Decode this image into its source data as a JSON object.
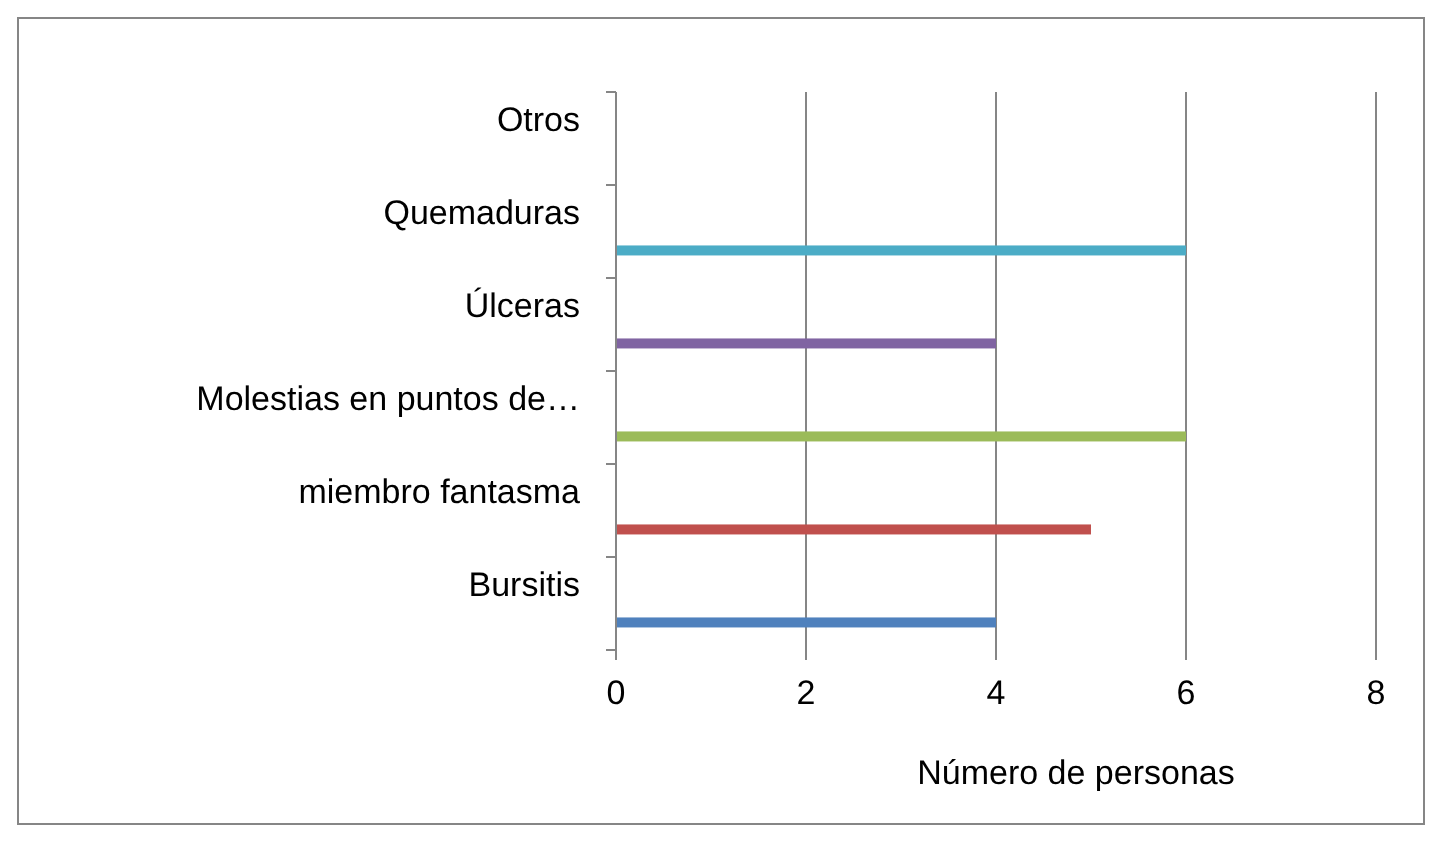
{
  "chart_data": {
    "type": "bar",
    "orientation": "horizontal",
    "xlabel": "Número de personas",
    "categories": [
      "Otros",
      "Quemaduras",
      "Úlceras",
      "Molestias en puntos de…",
      "miembro fantasma",
      "Bursitis"
    ],
    "values": [
      0,
      6,
      4,
      6,
      5,
      4
    ],
    "colors": [
      "#f79646",
      "#4bacc6",
      "#8064a2",
      "#9bbb59",
      "#c0504d",
      "#4f81bd"
    ],
    "xlim": [
      0,
      8
    ],
    "xticks": [
      0,
      2,
      4,
      6,
      8
    ],
    "grid": "x"
  }
}
